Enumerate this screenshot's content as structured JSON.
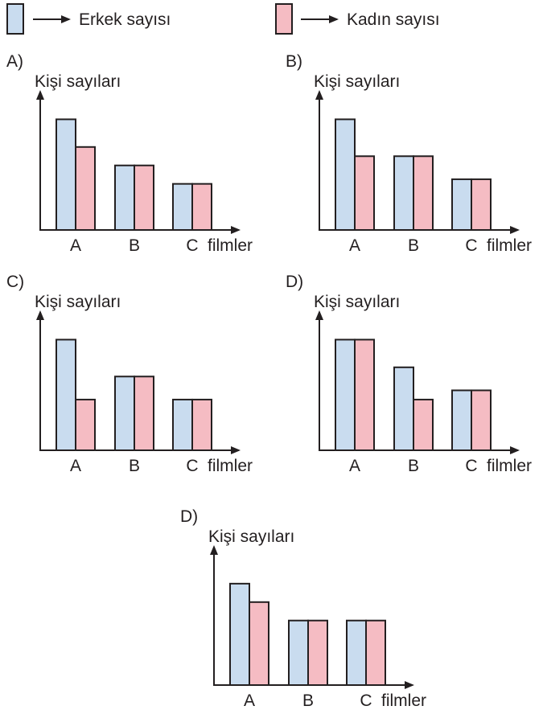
{
  "legend": {
    "erkek_label": "Erkek sayısı",
    "kadin_label": "Kadın sayısı"
  },
  "colors": {
    "erkek": "#c9dcef",
    "kadin": "#f5bcc3",
    "stroke": "#231f20"
  },
  "chart_data": [
    {
      "type": "bar",
      "option": "A)",
      "ylabel": "Kişi sayıları",
      "xlabel": "filmler",
      "categories": [
        "A",
        "B",
        "C"
      ],
      "series": [
        {
          "name": "Erkek sayısı",
          "values": [
            6,
            3.5,
            2.5
          ]
        },
        {
          "name": "Kadın sayısı",
          "values": [
            4.5,
            3.5,
            2.5
          ]
        }
      ],
      "ylim": [
        0,
        7.5
      ]
    },
    {
      "type": "bar",
      "option": "B)",
      "ylabel": "Kişi sayıları",
      "xlabel": "filmler",
      "categories": [
        "A",
        "B",
        "C"
      ],
      "series": [
        {
          "name": "Erkek sayısı",
          "values": [
            6,
            4,
            2.75
          ]
        },
        {
          "name": "Kadın sayısı",
          "values": [
            4,
            4,
            2.75
          ]
        }
      ],
      "ylim": [
        0,
        7.5
      ]
    },
    {
      "type": "bar",
      "option": "C)",
      "ylabel": "Kişi sayıları",
      "xlabel": "filmler",
      "categories": [
        "A",
        "B",
        "C"
      ],
      "series": [
        {
          "name": "Erkek sayısı",
          "values": [
            6,
            4,
            2.75
          ]
        },
        {
          "name": "Kadın sayısı",
          "values": [
            2.75,
            4,
            2.75
          ]
        }
      ],
      "ylim": [
        0,
        7.5
      ]
    },
    {
      "type": "bar",
      "option": "D)",
      "ylabel": "Kişi sayıları",
      "xlabel": "filmler",
      "categories": [
        "A",
        "B",
        "C"
      ],
      "series": [
        {
          "name": "Erkek sayısı",
          "values": [
            6,
            4.5,
            3.25
          ]
        },
        {
          "name": "Kadın sayısı",
          "values": [
            6,
            2.75,
            3.25
          ]
        }
      ],
      "ylim": [
        0,
        7.5
      ]
    },
    {
      "type": "bar",
      "option": "D)",
      "ylabel": "Kişi sayıları",
      "xlabel": "filmler",
      "categories": [
        "A",
        "B",
        "C"
      ],
      "series": [
        {
          "name": "Erkek sayısı",
          "values": [
            5.5,
            3.5,
            3.5
          ]
        },
        {
          "name": "Kadın sayısı",
          "values": [
            4.5,
            3.5,
            3.5
          ]
        }
      ],
      "ylim": [
        0,
        7.5
      ]
    }
  ]
}
